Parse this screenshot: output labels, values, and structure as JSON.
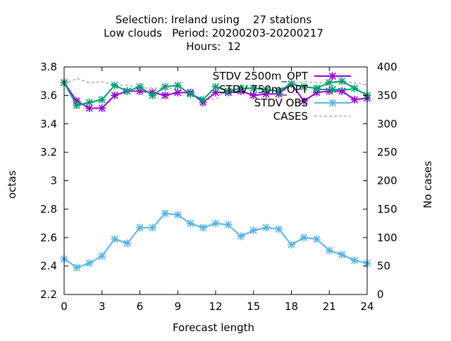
{
  "chart_data": {
    "type": "line",
    "title_lines": [
      "Selection: Ireland using    27 stations",
      "Low clouds   Period: 20200203-20200217",
      "Hours:  12"
    ],
    "xlabel": "Forecast length",
    "ylabel": "octas",
    "y2label": "No cases",
    "xlim": [
      0,
      24
    ],
    "ylim": [
      2.2,
      3.8
    ],
    "y2lim": [
      0,
      400
    ],
    "x_ticks": [
      "0",
      "3",
      "6",
      "9",
      "12",
      "15",
      "18",
      "21",
      "24"
    ],
    "y_ticks": [
      "2.2",
      "2.4",
      "2.6",
      "2.8",
      "3",
      "3.2",
      "3.4",
      "3.6",
      "3.8"
    ],
    "y2_ticks": [
      "0",
      "50",
      "100",
      "150",
      "200",
      "250",
      "300",
      "350",
      "400"
    ],
    "grid": false,
    "legend_position": "top-right",
    "x": [
      0,
      1,
      2,
      3,
      4,
      5,
      6,
      7,
      8,
      9,
      10,
      11,
      12,
      13,
      14,
      15,
      16,
      17,
      18,
      19,
      20,
      21,
      22,
      23,
      24
    ],
    "series": [
      {
        "name": "STDV 2500m_OPT",
        "axis": "y",
        "color": "#9400d3",
        "marker": "x-star",
        "values": [
          3.69,
          3.56,
          3.51,
          3.51,
          3.6,
          3.63,
          3.63,
          3.62,
          3.6,
          3.62,
          3.62,
          3.55,
          3.62,
          3.62,
          3.63,
          3.6,
          3.61,
          3.61,
          3.68,
          3.56,
          3.62,
          3.63,
          3.63,
          3.57,
          3.58
        ]
      },
      {
        "name": "STDV 750m_OPT",
        "axis": "y",
        "color": "#009e73",
        "marker": "x-star",
        "values": [
          3.69,
          3.53,
          3.55,
          3.57,
          3.67,
          3.63,
          3.66,
          3.6,
          3.66,
          3.67,
          3.61,
          3.57,
          3.66,
          3.63,
          3.65,
          3.65,
          3.64,
          3.63,
          3.68,
          3.66,
          3.65,
          3.69,
          3.7,
          3.65,
          3.6
        ]
      },
      {
        "name": "STDV OBS",
        "axis": "y",
        "color": "#56b4e9",
        "marker": "x-star",
        "values": [
          2.45,
          2.39,
          2.42,
          2.47,
          2.59,
          2.56,
          2.67,
          2.67,
          2.77,
          2.76,
          2.7,
          2.67,
          2.7,
          2.69,
          2.61,
          2.65,
          2.67,
          2.66,
          2.55,
          2.6,
          2.59,
          2.51,
          2.48,
          2.44,
          2.42
        ]
      },
      {
        "name": "CASES",
        "axis": "y2",
        "color": "#a0a0a0",
        "dashed": true,
        "values": [
          368,
          380,
          372,
          374,
          368,
          368,
          363,
          363,
          362,
          361,
          350,
          343,
          343,
          362,
          361,
          362,
          360,
          360,
          371,
          374,
          372,
          372,
          373,
          372,
          368
        ]
      }
    ]
  }
}
